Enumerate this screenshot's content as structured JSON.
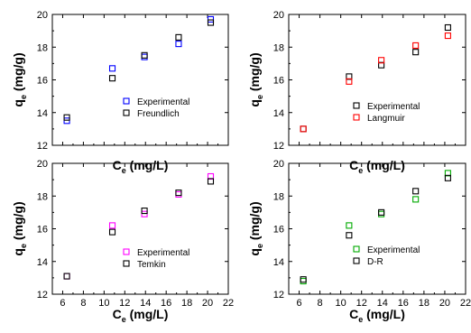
{
  "chart_data": [
    {
      "type": "scatter",
      "xlabel": "C",
      "xlabel_sub": "e",
      "xlabel_unit": " (mg/L)",
      "ylabel": "q",
      "ylabel_sub": "e",
      "ylabel_unit": " (mg/g)",
      "xlim": [
        5,
        22
      ],
      "ylim": [
        12,
        20
      ],
      "xticks": [
        6,
        8,
        10,
        12,
        14,
        16,
        18,
        20,
        22
      ],
      "yticks": [
        12,
        14,
        16,
        18,
        20
      ],
      "show_x_ticklabels": false,
      "legend_position": "center-right",
      "series": [
        {
          "name": "Experimental",
          "color": "#0000ff",
          "x": [
            6.4,
            10.8,
            13.9,
            17.2,
            20.3
          ],
          "y": [
            13.5,
            16.7,
            17.4,
            18.2,
            19.7
          ]
        },
        {
          "name": "Freundlich",
          "color": "#000000",
          "x": [
            6.4,
            10.8,
            13.9,
            17.2,
            20.3
          ],
          "y": [
            13.7,
            16.1,
            17.5,
            18.6,
            19.5
          ]
        }
      ]
    },
    {
      "type": "scatter",
      "xlabel": "C",
      "xlabel_sub": "e",
      "xlabel_unit": " (mg/L)",
      "ylabel": "q",
      "ylabel_sub": "e",
      "ylabel_unit": " (mg/g)",
      "xlim": [
        5,
        22
      ],
      "ylim": [
        12,
        20
      ],
      "xticks": [
        6,
        8,
        10,
        12,
        14,
        16,
        18,
        20,
        22
      ],
      "yticks": [
        12,
        14,
        16,
        18,
        20
      ],
      "show_x_ticklabels": false,
      "legend_position": "center-right",
      "series": [
        {
          "name": "Experimental",
          "color": "#000000",
          "x": [
            6.4,
            10.8,
            13.9,
            17.2,
            20.3
          ],
          "y": [
            13.0,
            16.2,
            16.9,
            17.7,
            19.2
          ]
        },
        {
          "name": "Langmuir",
          "color": "#ff0000",
          "x": [
            6.4,
            10.8,
            13.9,
            17.2,
            20.3
          ],
          "y": [
            13.0,
            15.9,
            17.2,
            18.1,
            18.7
          ]
        }
      ]
    },
    {
      "type": "scatter",
      "xlabel": "C",
      "xlabel_sub": "e",
      "xlabel_unit": " (mg/L)",
      "ylabel": "q",
      "ylabel_sub": "e",
      "ylabel_unit": " (mg/g)",
      "xlim": [
        5,
        22
      ],
      "ylim": [
        12,
        20
      ],
      "xticks": [
        6,
        8,
        10,
        12,
        14,
        16,
        18,
        20,
        22
      ],
      "yticks": [
        12,
        14,
        16,
        18,
        20
      ],
      "show_x_ticklabels": true,
      "legend_position": "center-right",
      "series": [
        {
          "name": "Experimental",
          "color": "#ff00ff",
          "x": [
            6.4,
            10.8,
            13.9,
            17.2,
            20.3
          ],
          "y": [
            13.1,
            16.2,
            16.9,
            18.1,
            19.2
          ]
        },
        {
          "name": "Temkin",
          "color": "#000000",
          "x": [
            6.4,
            10.8,
            13.9,
            17.2,
            20.3
          ],
          "y": [
            13.1,
            15.8,
            17.1,
            18.2,
            18.9
          ]
        }
      ]
    },
    {
      "type": "scatter",
      "xlabel": "C",
      "xlabel_sub": "e",
      "xlabel_unit": " (mg/L)",
      "ylabel": "q",
      "ylabel_sub": "e",
      "ylabel_unit": " (mg/g)",
      "xlim": [
        5,
        22
      ],
      "ylim": [
        12,
        20
      ],
      "xticks": [
        6,
        8,
        10,
        12,
        14,
        16,
        18,
        20,
        22
      ],
      "yticks": [
        12,
        14,
        16,
        18,
        20
      ],
      "show_x_ticklabels": true,
      "legend_position": "center-right",
      "series": [
        {
          "name": "Experimental",
          "color": "#00aa00",
          "x": [
            6.4,
            10.8,
            13.9,
            17.2,
            20.3
          ],
          "y": [
            12.8,
            16.2,
            16.9,
            17.8,
            19.4
          ]
        },
        {
          "name": "D-R",
          "color": "#000000",
          "x": [
            6.4,
            10.8,
            13.9,
            17.2,
            20.3
          ],
          "y": [
            12.9,
            15.6,
            17.0,
            18.3,
            19.1
          ]
        }
      ]
    }
  ]
}
